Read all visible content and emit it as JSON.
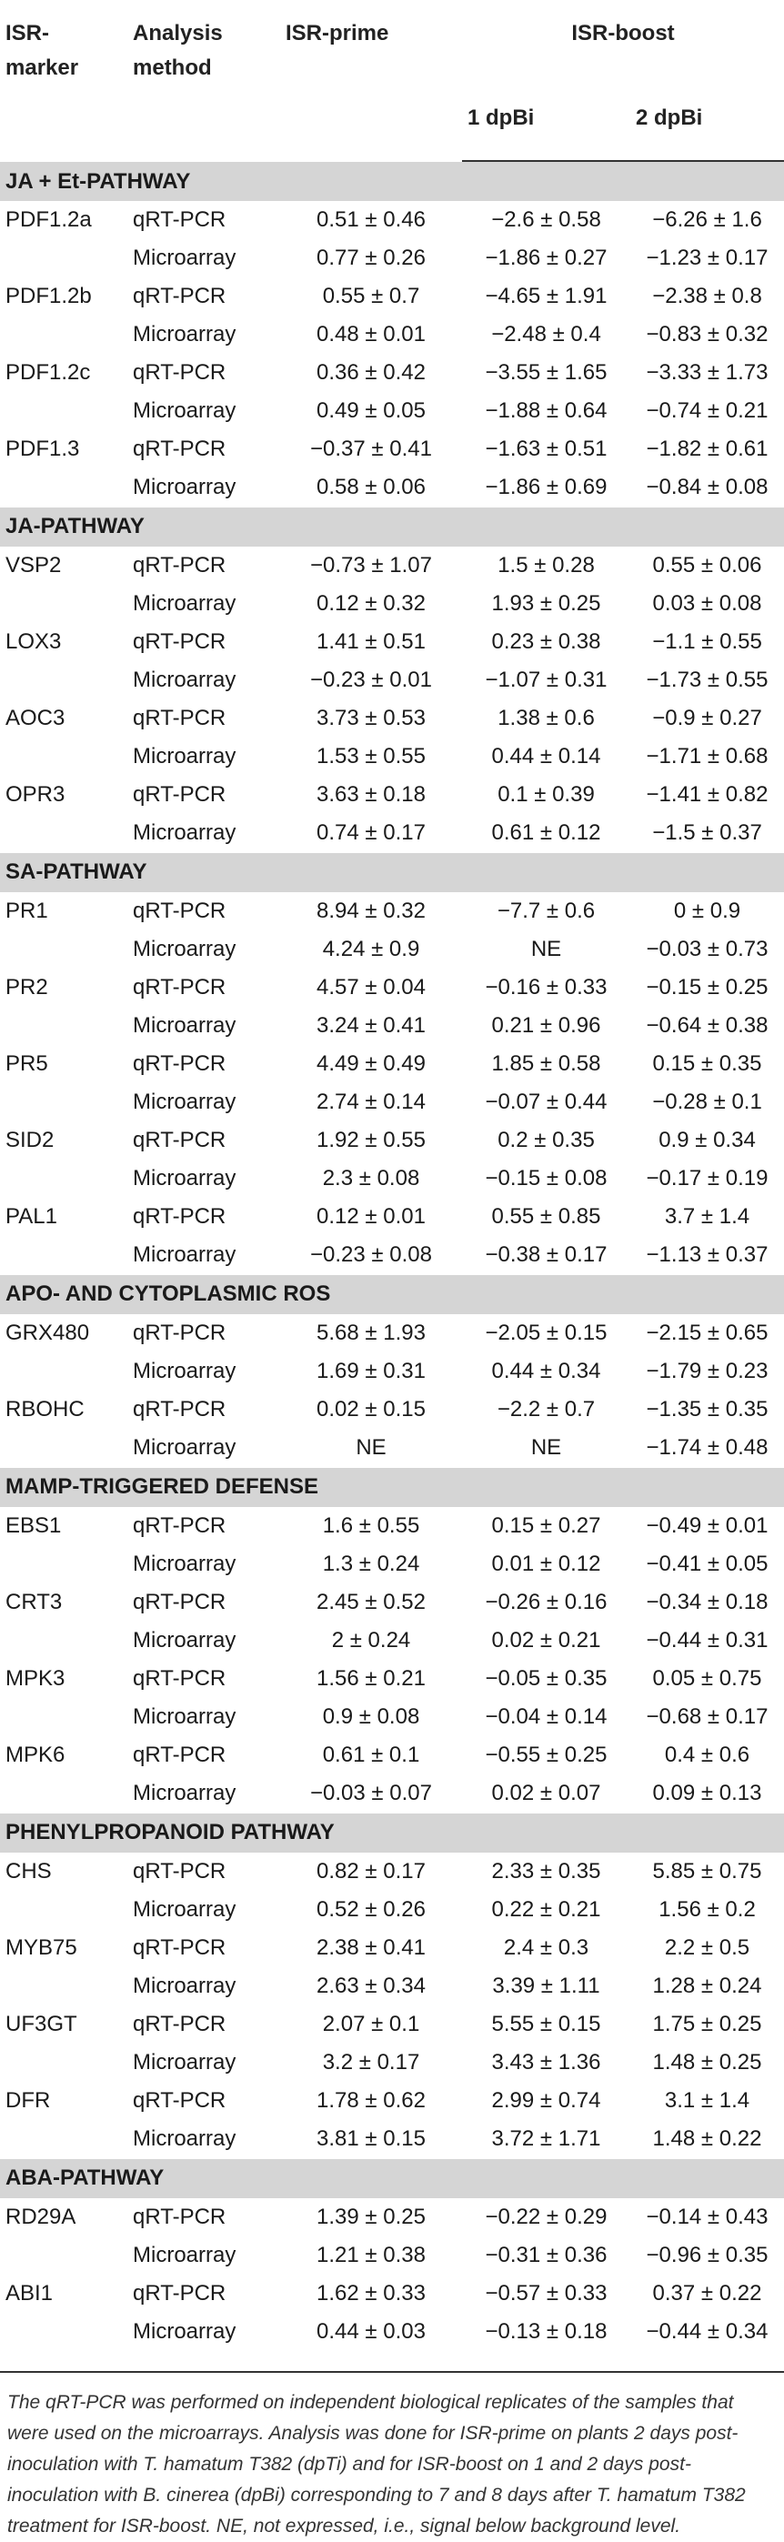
{
  "header": {
    "col_marker": "ISR-marker",
    "col_method": "Analysis method",
    "col_prime": "ISR-prime",
    "col_boost": "ISR-boost",
    "sub_1dpbi": "1 dpBi",
    "sub_2dpbi": "2 dpBi"
  },
  "sections": [
    {
      "title": "JA + Et-PATHWAY",
      "markers": [
        {
          "name": "PDF1.2a",
          "rows": [
            {
              "method": "qRT-PCR",
              "prime": "0.51 ± 0.46",
              "d1": "−2.6 ± 0.58",
              "d2": "−6.26 ± 1.6"
            },
            {
              "method": "Microarray",
              "prime": "0.77 ± 0.26",
              "d1": "−1.86 ± 0.27",
              "d2": "−1.23 ± 0.17"
            }
          ]
        },
        {
          "name": "PDF1.2b",
          "rows": [
            {
              "method": "qRT-PCR",
              "prime": "0.55 ± 0.7",
              "d1": "−4.65 ± 1.91",
              "d2": "−2.38 ± 0.8"
            },
            {
              "method": "Microarray",
              "prime": "0.48 ± 0.01",
              "d1": "−2.48 ± 0.4",
              "d2": "−0.83 ± 0.32"
            }
          ]
        },
        {
          "name": "PDF1.2c",
          "rows": [
            {
              "method": "qRT-PCR",
              "prime": "0.36 ± 0.42",
              "d1": "−3.55 ± 1.65",
              "d2": "−3.33 ± 1.73"
            },
            {
              "method": "Microarray",
              "prime": "0.49 ± 0.05",
              "d1": "−1.88 ± 0.64",
              "d2": "−0.74 ± 0.21"
            }
          ]
        },
        {
          "name": "PDF1.3",
          "rows": [
            {
              "method": "qRT-PCR",
              "prime": "−0.37 ± 0.41",
              "d1": "−1.63 ± 0.51",
              "d2": "−1.82 ± 0.61"
            },
            {
              "method": "Microarray",
              "prime": "0.58 ± 0.06",
              "d1": "−1.86 ± 0.69",
              "d2": "−0.84 ± 0.08"
            }
          ]
        }
      ]
    },
    {
      "title": "JA-PATHWAY",
      "markers": [
        {
          "name": "VSP2",
          "rows": [
            {
              "method": "qRT-PCR",
              "prime": "−0.73 ± 1.07",
              "d1": "1.5 ± 0.28",
              "d2": "0.55 ± 0.06"
            },
            {
              "method": "Microarray",
              "prime": "0.12 ± 0.32",
              "d1": "1.93 ± 0.25",
              "d2": "0.03 ± 0.08"
            }
          ]
        },
        {
          "name": "LOX3",
          "rows": [
            {
              "method": "qRT-PCR",
              "prime": "1.41 ± 0.51",
              "d1": "0.23 ± 0.38",
              "d2": "−1.1 ± 0.55"
            },
            {
              "method": "Microarray",
              "prime": "−0.23 ± 0.01",
              "d1": "−1.07 ± 0.31",
              "d2": "−1.73 ± 0.55"
            }
          ]
        },
        {
          "name": "AOC3",
          "rows": [
            {
              "method": "qRT-PCR",
              "prime": "3.73 ± 0.53",
              "d1": "1.38 ± 0.6",
              "d2": "−0.9 ± 0.27"
            },
            {
              "method": "Microarray",
              "prime": "1.53 ± 0.55",
              "d1": "0.44 ± 0.14",
              "d2": "−1.71 ± 0.68"
            }
          ]
        },
        {
          "name": "OPR3",
          "rows": [
            {
              "method": "qRT-PCR",
              "prime": "3.63 ± 0.18",
              "d1": "0.1 ± 0.39",
              "d2": "−1.41 ± 0.82"
            },
            {
              "method": "Microarray",
              "prime": "0.74 ± 0.17",
              "d1": "0.61 ± 0.12",
              "d2": "−1.5 ± 0.37"
            }
          ]
        }
      ]
    },
    {
      "title": "SA-PATHWAY",
      "markers": [
        {
          "name": "PR1",
          "rows": [
            {
              "method": "qRT-PCR",
              "prime": "8.94 ± 0.32",
              "d1": "−7.7 ± 0.6",
              "d2": "0 ± 0.9"
            },
            {
              "method": "Microarray",
              "prime": "4.24 ± 0.9",
              "d1": "NE",
              "d2": "−0.03 ± 0.73"
            }
          ]
        },
        {
          "name": "PR2",
          "rows": [
            {
              "method": "qRT-PCR",
              "prime": "4.57 ± 0.04",
              "d1": "−0.16 ± 0.33",
              "d2": "−0.15 ± 0.25"
            },
            {
              "method": "Microarray",
              "prime": "3.24 ± 0.41",
              "d1": "0.21 ± 0.96",
              "d2": "−0.64 ± 0.38"
            }
          ]
        },
        {
          "name": "PR5",
          "rows": [
            {
              "method": "qRT-PCR",
              "prime": "4.49 ± 0.49",
              "d1": "1.85 ± 0.58",
              "d2": "0.15 ± 0.35"
            },
            {
              "method": "Microarray",
              "prime": "2.74 ± 0.14",
              "d1": "−0.07 ± 0.44",
              "d2": "−0.28 ± 0.1"
            }
          ]
        },
        {
          "name": "SID2",
          "rows": [
            {
              "method": "qRT-PCR",
              "prime": "1.92 ± 0.55",
              "d1": "0.2 ± 0.35",
              "d2": "0.9 ± 0.34"
            },
            {
              "method": "Microarray",
              "prime": "2.3 ± 0.08",
              "d1": "−0.15 ± 0.08",
              "d2": "−0.17 ± 0.19"
            }
          ]
        },
        {
          "name": "PAL1",
          "rows": [
            {
              "method": "qRT-PCR",
              "prime": "0.12 ± 0.01",
              "d1": "0.55 ± 0.85",
              "d2": "3.7 ± 1.4"
            },
            {
              "method": "Microarray",
              "prime": "−0.23 ± 0.08",
              "d1": "−0.38 ± 0.17",
              "d2": "−1.13 ± 0.37"
            }
          ]
        }
      ]
    },
    {
      "title": "APO- AND CYTOPLASMIC ROS",
      "markers": [
        {
          "name": "GRX480",
          "rows": [
            {
              "method": "qRT-PCR",
              "prime": "5.68 ± 1.93",
              "d1": "−2.05 ± 0.15",
              "d2": "−2.15 ± 0.65"
            },
            {
              "method": "Microarray",
              "prime": "1.69 ± 0.31",
              "d1": "0.44 ± 0.34",
              "d2": "−1.79 ± 0.23"
            }
          ]
        },
        {
          "name": "RBOHC",
          "rows": [
            {
              "method": "qRT-PCR",
              "prime": "0.02 ± 0.15",
              "d1": "−2.2 ± 0.7",
              "d2": "−1.35 ± 0.35"
            },
            {
              "method": "Microarray",
              "prime": "NE",
              "d1": "NE",
              "d2": "−1.74 ± 0.48"
            }
          ]
        }
      ]
    },
    {
      "title": "MAMP-TRIGGERED DEFENSE",
      "markers": [
        {
          "name": "EBS1",
          "rows": [
            {
              "method": "qRT-PCR",
              "prime": "1.6 ± 0.55",
              "d1": "0.15 ± 0.27",
              "d2": "−0.49 ± 0.01"
            },
            {
              "method": "Microarray",
              "prime": "1.3 ± 0.24",
              "d1": "0.01 ± 0.12",
              "d2": "−0.41 ± 0.05"
            }
          ]
        },
        {
          "name": "CRT3",
          "rows": [
            {
              "method": "qRT-PCR",
              "prime": "2.45 ± 0.52",
              "d1": "−0.26 ± 0.16",
              "d2": "−0.34 ± 0.18"
            },
            {
              "method": "Microarray",
              "prime": "2 ± 0.24",
              "d1": "0.02 ± 0.21",
              "d2": "−0.44 ± 0.31"
            }
          ]
        },
        {
          "name": "MPK3",
          "rows": [
            {
              "method": "qRT-PCR",
              "prime": "1.56 ± 0.21",
              "d1": "−0.05 ± 0.35",
              "d2": "0.05 ± 0.75"
            },
            {
              "method": "Microarray",
              "prime": "0.9 ± 0.08",
              "d1": "−0.04 ± 0.14",
              "d2": "−0.68 ± 0.17"
            }
          ]
        },
        {
          "name": "MPK6",
          "rows": [
            {
              "method": "qRT-PCR",
              "prime": "0.61 ± 0.1",
              "d1": "−0.55 ± 0.25",
              "d2": "0.4 ± 0.6"
            },
            {
              "method": "Microarray",
              "prime": "−0.03 ± 0.07",
              "d1": "0.02 ± 0.07",
              "d2": "0.09 ± 0.13"
            }
          ]
        }
      ]
    },
    {
      "title": "PHENYLPROPANOID PATHWAY",
      "markers": [
        {
          "name": "CHS",
          "rows": [
            {
              "method": "qRT-PCR",
              "prime": "0.82 ± 0.17",
              "d1": "2.33 ± 0.35",
              "d2": "5.85 ± 0.75"
            },
            {
              "method": "Microarray",
              "prime": "0.52 ± 0.26",
              "d1": "0.22 ± 0.21",
              "d2": "1.56 ± 0.2"
            }
          ]
        },
        {
          "name": "MYB75",
          "rows": [
            {
              "method": "qRT-PCR",
              "prime": "2.38 ± 0.41",
              "d1": "2.4 ± 0.3",
              "d2": "2.2 ± 0.5"
            },
            {
              "method": "Microarray",
              "prime": "2.63 ± 0.34",
              "d1": "3.39 ± 1.11",
              "d2": "1.28 ± 0.24"
            }
          ]
        },
        {
          "name": "UF3GT",
          "rows": [
            {
              "method": "qRT-PCR",
              "prime": "2.07 ± 0.1",
              "d1": "5.55 ± 0.15",
              "d2": "1.75 ± 0.25"
            },
            {
              "method": "Microarray",
              "prime": "3.2 ± 0.17",
              "d1": "3.43 ± 1.36",
              "d2": "1.48 ± 0.25"
            }
          ]
        },
        {
          "name": "DFR",
          "rows": [
            {
              "method": "qRT-PCR",
              "prime": "1.78 ± 0.62",
              "d1": "2.99 ± 0.74",
              "d2": "3.1 ± 1.4"
            },
            {
              "method": "Microarray",
              "prime": "3.81 ± 0.15",
              "d1": "3.72 ± 1.71",
              "d2": "1.48 ± 0.22"
            }
          ]
        }
      ]
    },
    {
      "title": "ABA-PATHWAY",
      "markers": [
        {
          "name": "RD29A",
          "rows": [
            {
              "method": "qRT-PCR",
              "prime": "1.39 ± 0.25",
              "d1": "−0.22 ± 0.29",
              "d2": "−0.14 ± 0.43"
            },
            {
              "method": "Microarray",
              "prime": "1.21 ± 0.38",
              "d1": "−0.31 ± 0.36",
              "d2": "−0.96 ± 0.35"
            }
          ]
        },
        {
          "name": "ABI1",
          "rows": [
            {
              "method": "qRT-PCR",
              "prime": "1.62 ± 0.33",
              "d1": "−0.57 ± 0.33",
              "d2": "0.37 ± 0.22"
            },
            {
              "method": "Microarray",
              "prime": "0.44 ± 0.03",
              "d1": "−0.13 ± 0.18",
              "d2": "−0.44 ± 0.34"
            }
          ]
        }
      ]
    }
  ],
  "caption": "The qRT-PCR was performed on independent biological replicates of the samples that were used on the microarrays. Analysis was done for ISR-prime on plants 2 days post-inoculation with T. hamatum T382 (dpTi) and for ISR-boost on 1 and 2 days post-inoculation with B. cinerea (dpBi) corresponding to 7 and 8 days after T. hamatum T382 treatment for ISR-boost. NE, not expressed, i.e., signal below background level."
}
